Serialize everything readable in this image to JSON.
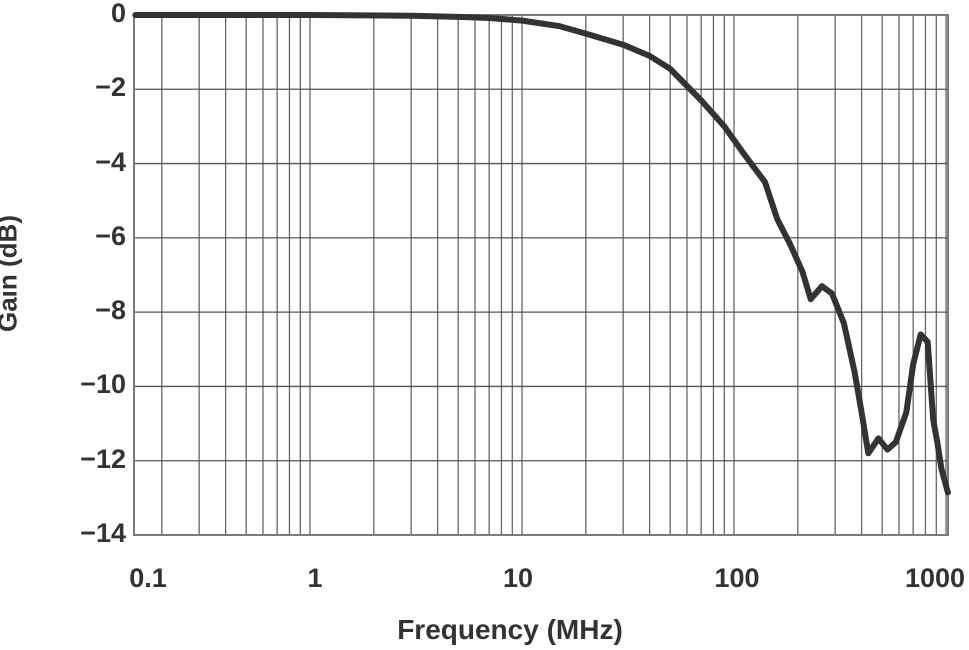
{
  "chart_data": {
    "type": "line",
    "title": "",
    "xlabel": "Frequency (MHz)",
    "ylabel": "Gain (dB)",
    "xscale": "log",
    "xlim": [
      0.1,
      1100
    ],
    "ylim": [
      -14,
      0
    ],
    "x_tick_labels": [
      "0.1",
      "1",
      "10",
      "100",
      "1000"
    ],
    "y_tick_labels": [
      "0",
      "−2",
      "−4",
      "−6",
      "−8",
      "−10",
      "−12",
      "−14"
    ],
    "grid": true,
    "legend": null,
    "series": [
      {
        "name": "Gain",
        "color": "#333333",
        "x": [
          0.15,
          1,
          3,
          5,
          7,
          10,
          15,
          20,
          30,
          40,
          50,
          70,
          90,
          110,
          140,
          160,
          185,
          210,
          230,
          260,
          290,
          330,
          370,
          400,
          430,
          480,
          530,
          580,
          650,
          700,
          760,
          820,
          870,
          910,
          950,
          1020,
          1100
        ],
        "y": [
          0,
          0,
          -0.02,
          -0.05,
          -0.08,
          -0.15,
          -0.3,
          -0.5,
          -0.8,
          -1.1,
          -1.45,
          -2.3,
          -3.0,
          -3.7,
          -4.5,
          -5.5,
          -6.2,
          -6.9,
          -7.65,
          -7.3,
          -7.5,
          -8.3,
          -9.6,
          -10.7,
          -11.8,
          -11.4,
          -11.7,
          -11.5,
          -10.7,
          -9.4,
          -8.6,
          -8.8,
          -10.9,
          -11.5,
          -12.2,
          -12.85,
          -12.85
        ]
      }
    ]
  },
  "axes": {
    "x_title": "Frequency (MHz)",
    "y_title": "Gain (dB)",
    "x_ticks": [
      {
        "label": "0.1",
        "value": 0.1
      },
      {
        "label": "1",
        "value": 1
      },
      {
        "label": "10",
        "value": 10
      },
      {
        "label": "100",
        "value": 100
      },
      {
        "label": "1000",
        "value": 1000
      }
    ],
    "y_ticks": [
      {
        "label": "0",
        "value": 0
      },
      {
        "label": "−2",
        "value": -2
      },
      {
        "label": "−4",
        "value": -4
      },
      {
        "label": "−6",
        "value": -6
      },
      {
        "label": "−8",
        "value": -8
      },
      {
        "label": "−10",
        "value": -10
      },
      {
        "label": "−12",
        "value": -12
      },
      {
        "label": "−14",
        "value": -14
      }
    ]
  }
}
